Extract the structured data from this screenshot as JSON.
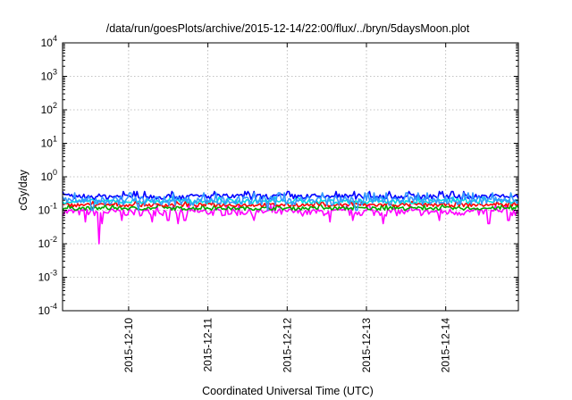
{
  "chart_data": {
    "type": "line",
    "title": "/data/run/goesPlots/archive/2015-12-14/22:00/flux/../bryn/5daysMoon.plot",
    "xlabel": "Coordinated Universal Time (UTC)",
    "ylabel": "cGy/day",
    "yscale": "log",
    "ylim": [
      0.0001,
      10000
    ],
    "xlim": [
      "2015-12-09 04:00",
      "2015-12-14 22:00"
    ],
    "grid": true,
    "x_ticks": [
      "2015-12-10",
      "2015-12-11",
      "2015-12-12",
      "2015-12-13",
      "2015-12-14"
    ],
    "y_ticks": [
      {
        "value": 0.0001,
        "base": "10",
        "exp": "-4"
      },
      {
        "value": 0.001,
        "base": "10",
        "exp": "-3"
      },
      {
        "value": 0.01,
        "base": "10",
        "exp": "-2"
      },
      {
        "value": 0.1,
        "base": "10",
        "exp": "-1"
      },
      {
        "value": 1,
        "base": "10",
        "exp": "0"
      },
      {
        "value": 10,
        "base": "10",
        "exp": "1"
      },
      {
        "value": 100,
        "base": "10",
        "exp": "2"
      },
      {
        "value": 1000,
        "base": "10",
        "exp": "3"
      },
      {
        "value": 10000,
        "base": "10",
        "exp": "4"
      }
    ],
    "series": [
      {
        "color": "#ff00ff",
        "base": 0.09,
        "jitter": 0.25,
        "dips": [
          [
            "2015-12-09 11:00",
            0.045
          ],
          [
            "2015-12-09 15:00",
            0.01
          ],
          [
            "2015-12-09 16:00",
            0.04
          ],
          [
            "2015-12-09 22:00",
            0.05
          ],
          [
            "2015-12-10 07:00",
            0.045
          ],
          [
            "2015-12-10 12:00",
            0.05
          ],
          [
            "2015-12-10 15:00",
            0.04
          ],
          [
            "2015-12-10 17:00",
            0.05
          ],
          [
            "2015-12-11 14:00",
            0.05
          ],
          [
            "2015-12-12 13:00",
            0.045
          ],
          [
            "2015-12-12 20:00",
            0.05
          ],
          [
            "2015-12-13 05:00",
            0.04
          ],
          [
            "2015-12-13 22:00",
            0.05
          ],
          [
            "2015-12-14 13:00",
            0.04
          ],
          [
            "2015-12-14 19:00",
            0.05
          ]
        ]
      },
      {
        "color": "#00aa00",
        "base": 0.115,
        "jitter": 0.12,
        "dips": []
      },
      {
        "color": "#ff0000",
        "base": 0.145,
        "jitter": 0.12,
        "dips": []
      },
      {
        "color": "#00e0e0",
        "base": 0.185,
        "jitter": 0.15,
        "dips": []
      },
      {
        "color": "#0000ff",
        "base": 0.26,
        "jitter": 0.18,
        "dips": []
      },
      {
        "color": "#3399ff",
        "base": 0.2,
        "jitter": 0.3,
        "dips": [
          [
            "2015-12-09 13:00",
            0.1
          ],
          [
            "2015-12-10 03:00",
            0.1
          ],
          [
            "2015-12-11 18:00",
            0.1
          ],
          [
            "2015-12-12 21:00",
            0.1
          ]
        ]
      }
    ]
  }
}
